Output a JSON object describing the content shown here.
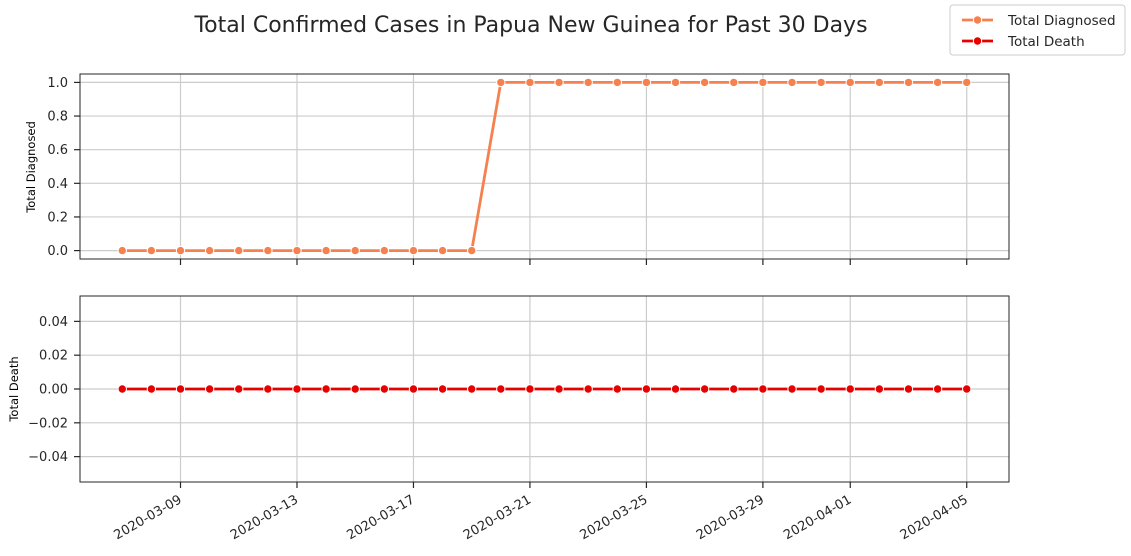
{
  "chart_data": {
    "type": "line",
    "title": "Total Confirmed Cases in Papua New Guinea for Past 30 Days",
    "x": [
      "2020-03-07",
      "2020-03-08",
      "2020-03-09",
      "2020-03-10",
      "2020-03-11",
      "2020-03-12",
      "2020-03-13",
      "2020-03-14",
      "2020-03-15",
      "2020-03-16",
      "2020-03-17",
      "2020-03-18",
      "2020-03-19",
      "2020-03-20",
      "2020-03-21",
      "2020-03-22",
      "2020-03-23",
      "2020-03-24",
      "2020-03-25",
      "2020-03-26",
      "2020-03-27",
      "2020-03-28",
      "2020-03-29",
      "2020-03-30",
      "2020-03-31",
      "2020-04-01",
      "2020-04-02",
      "2020-04-03",
      "2020-04-04",
      "2020-04-05"
    ],
    "xticks": [
      "2020-03-09",
      "2020-03-13",
      "2020-03-17",
      "2020-03-21",
      "2020-03-25",
      "2020-03-29",
      "2020-04-01",
      "2020-04-05"
    ],
    "legend": {
      "placement": "top-right"
    },
    "grid": true,
    "panels": [
      {
        "ylabel": "Total Diagnosed",
        "ylim": [
          -0.05,
          1.05
        ],
        "yticks": [
          0.0,
          0.2,
          0.4,
          0.6,
          0.8,
          1.0
        ],
        "ytick_labels": [
          "0.0",
          "0.2",
          "0.4",
          "0.6",
          "0.8",
          "1.0"
        ],
        "series": [
          {
            "name": "Total Diagnosed",
            "color": "#f5814f",
            "values": [
              0,
              0,
              0,
              0,
              0,
              0,
              0,
              0,
              0,
              0,
              0,
              0,
              0,
              1,
              1,
              1,
              1,
              1,
              1,
              1,
              1,
              1,
              1,
              1,
              1,
              1,
              1,
              1,
              1,
              1
            ]
          }
        ]
      },
      {
        "ylabel": "Total Death",
        "ylim": [
          -0.055,
          0.055
        ],
        "yticks": [
          -0.04,
          -0.02,
          0.0,
          0.02,
          0.04
        ],
        "ytick_labels": [
          "−0.04",
          "−0.02",
          "0.00",
          "0.02",
          "0.04"
        ],
        "series": [
          {
            "name": "Total Death",
            "color": "#e60000",
            "values": [
              0,
              0,
              0,
              0,
              0,
              0,
              0,
              0,
              0,
              0,
              0,
              0,
              0,
              0,
              0,
              0,
              0,
              0,
              0,
              0,
              0,
              0,
              0,
              0,
              0,
              0,
              0,
              0,
              0,
              0
            ]
          }
        ]
      }
    ]
  }
}
